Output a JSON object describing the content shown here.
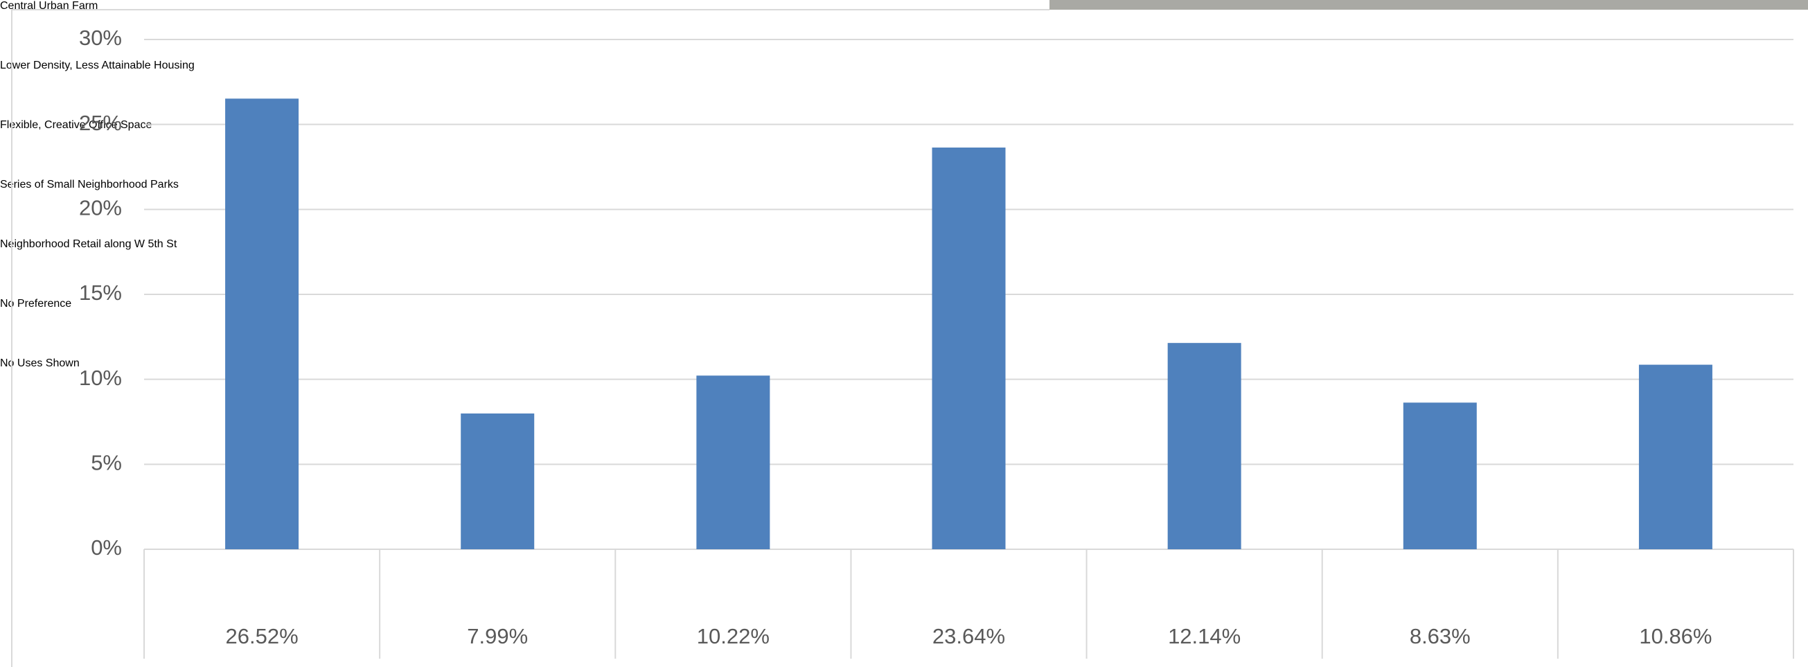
{
  "chart_data": {
    "type": "bar",
    "categories": [
      "Central Urban Farm",
      "Lower Density, Less Attainable Housing",
      "Flexible, Creative Office Space",
      "Series of Small Neighborhood Parks",
      "Neighborhood Retail along W 5th St",
      "No Preference",
      "No Uses Shown"
    ],
    "values": [
      26.52,
      7.99,
      10.22,
      23.64,
      12.14,
      8.63,
      10.86
    ],
    "value_labels": [
      "26.52%",
      "7.99%",
      "10.22%",
      "23.64%",
      "12.14%",
      "8.63%",
      "10.86%"
    ],
    "color": "#4f81bd",
    "ylim": [
      0,
      30
    ],
    "yticks": [
      {
        "value": 0,
        "label": "0%"
      },
      {
        "value": 5,
        "label": "5%"
      },
      {
        "value": 10,
        "label": "10%"
      },
      {
        "value": 15,
        "label": "15%"
      },
      {
        "value": 20,
        "label": "20%"
      },
      {
        "value": 25,
        "label": "25%"
      },
      {
        "value": 30,
        "label": "30%"
      }
    ],
    "grid": true
  }
}
